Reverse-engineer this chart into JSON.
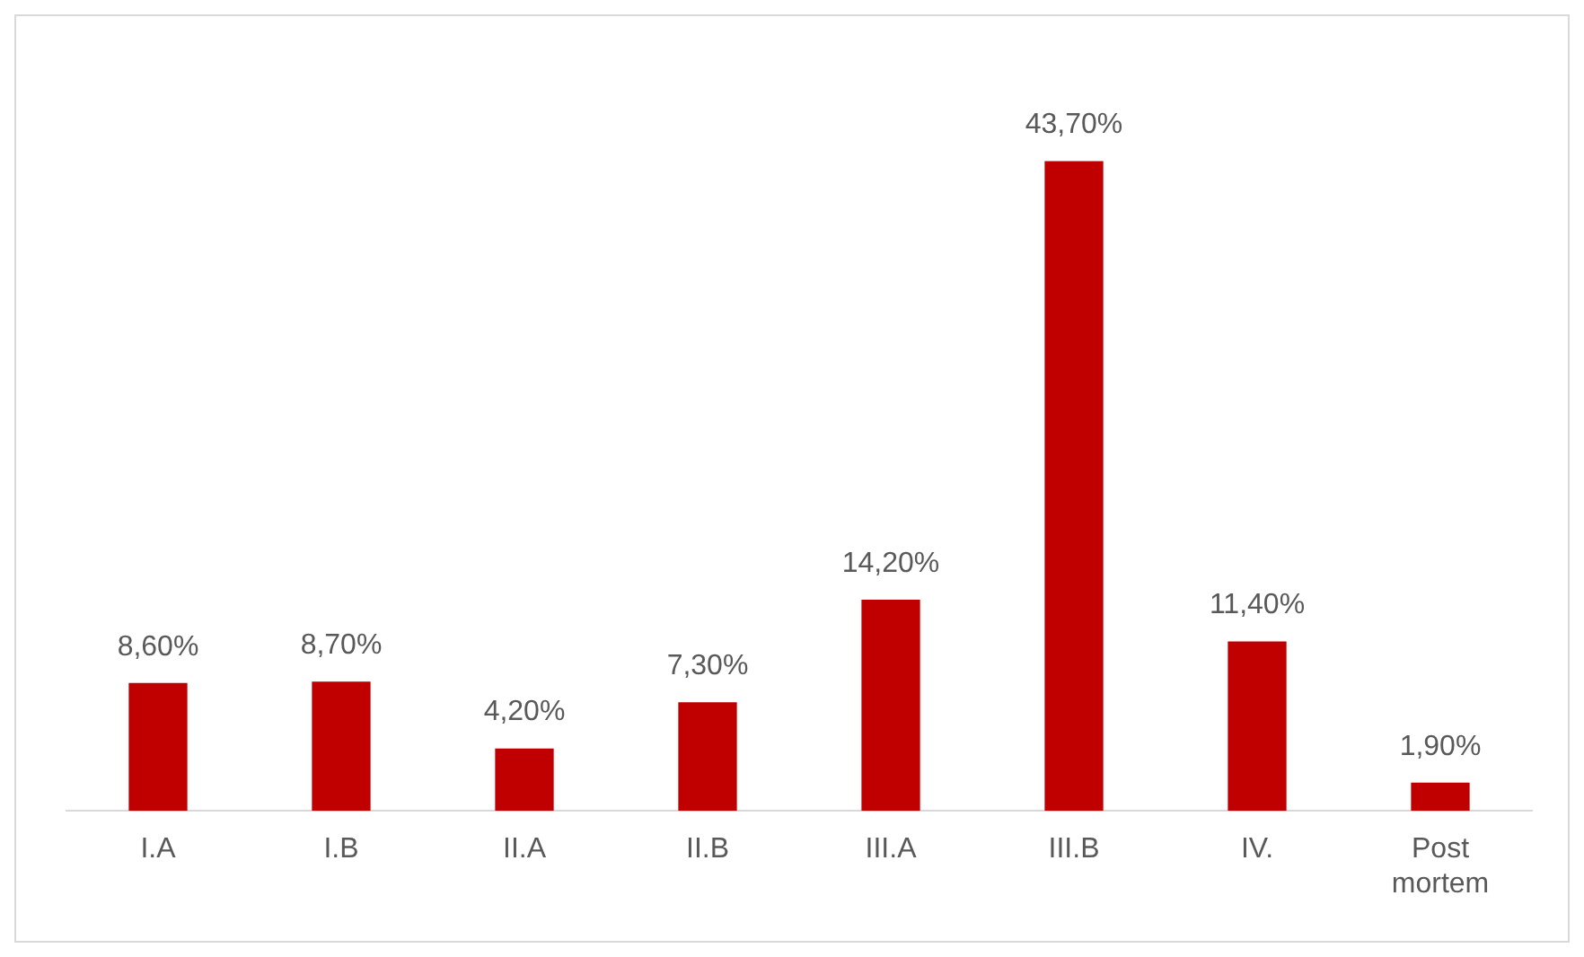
{
  "chart_data": {
    "type": "bar",
    "categories": [
      "I.A",
      "I.B",
      "II.A",
      "II.B",
      "III.A",
      "III.B",
      "IV.",
      "Post mortem"
    ],
    "values": [
      8.6,
      8.7,
      4.2,
      7.3,
      14.2,
      43.7,
      11.4,
      1.9
    ],
    "value_labels": [
      "8,60%",
      "8,70%",
      "4,20%",
      "7,30%",
      "14,20%",
      "43,70%",
      "11,40%",
      "1,90%"
    ],
    "color": "#c00000",
    "grid": false,
    "legend": false
  }
}
